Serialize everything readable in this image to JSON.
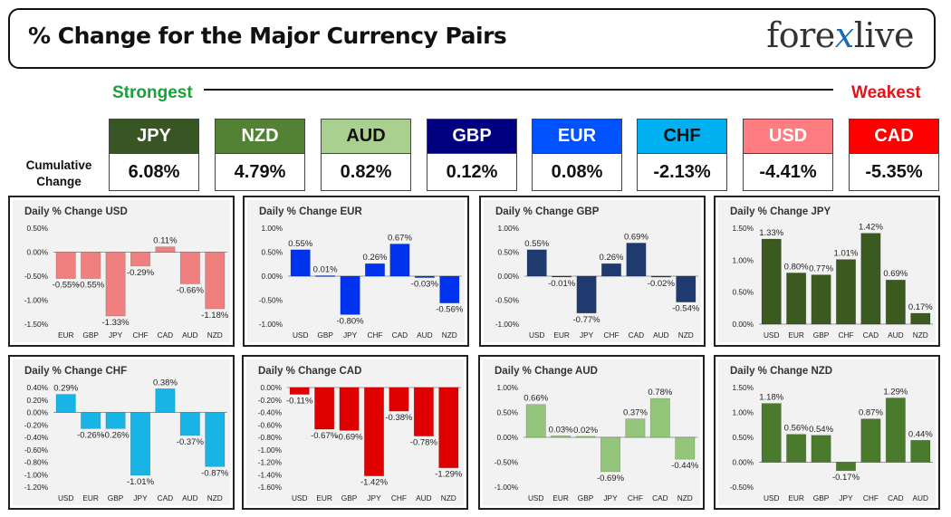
{
  "header": {
    "title": "% Change for the Major Currency Pairs",
    "logo_left": "fore",
    "logo_x": "x",
    "logo_right": "live"
  },
  "scale": {
    "strongest": "Strongest",
    "weakest": "Weakest"
  },
  "cumulative_label_1": "Cumulative",
  "cumulative_label_2": "Change",
  "currencies": [
    {
      "code": "JPY",
      "change": "6.08%",
      "bg": "#375623",
      "fg": "#ffffff"
    },
    {
      "code": "NZD",
      "change": "4.79%",
      "bg": "#548235",
      "fg": "#ffffff"
    },
    {
      "code": "AUD",
      "change": "0.82%",
      "bg": "#a9d08e",
      "fg": "#111111"
    },
    {
      "code": "GBP",
      "change": "0.12%",
      "bg": "#000080",
      "fg": "#ffffff"
    },
    {
      "code": "EUR",
      "change": "0.08%",
      "bg": "#0052ff",
      "fg": "#ffffff"
    },
    {
      "code": "CHF",
      "change": "-2.13%",
      "bg": "#00b0f0",
      "fg": "#111111"
    },
    {
      "code": "USD",
      "change": "-4.41%",
      "bg": "#ff7c80",
      "fg": "#ffffff"
    },
    {
      "code": "CAD",
      "change": "-5.35%",
      "bg": "#ff0000",
      "fg": "#ffffff"
    }
  ],
  "chart_data": [
    {
      "type": "bar",
      "title": "Daily % Change USD",
      "color": "#f08080",
      "categories": [
        "EUR",
        "GBP",
        "JPY",
        "CHF",
        "CAD",
        "AUD",
        "NZD"
      ],
      "values": [
        -0.55,
        -0.55,
        -1.33,
        -0.29,
        0.11,
        -0.66,
        -1.18
      ],
      "labels": [
        "-0.55%",
        "-0.55%",
        "-1.33%",
        "-0.29%",
        "0.11%",
        "-0.66%",
        "-1.18%"
      ],
      "ticks": [
        0.5,
        0,
        -0.5,
        -1,
        -1.5
      ],
      "tick_labels": [
        "0.50%",
        "0.00%",
        "-0.50%",
        "-1.00%",
        "-1.50%"
      ],
      "ylim": [
        -1.5,
        0.5
      ]
    },
    {
      "type": "bar",
      "title": "Daily % Change EUR",
      "color": "#0033ee",
      "categories": [
        "USD",
        "GBP",
        "JPY",
        "CHF",
        "CAD",
        "AUD",
        "NZD"
      ],
      "values": [
        0.55,
        0.01,
        -0.8,
        0.26,
        0.67,
        -0.03,
        -0.56
      ],
      "labels": [
        "0.55%",
        "0.01%",
        "-0.80%",
        "0.26%",
        "0.67%",
        "-0.03%",
        "-0.56%"
      ],
      "ticks": [
        1,
        0.5,
        0,
        -0.5,
        -1
      ],
      "tick_labels": [
        "1.00%",
        "0.50%",
        "0.00%",
        "-0.50%",
        "-1.00%"
      ],
      "ylim": [
        -1,
        1
      ]
    },
    {
      "type": "bar",
      "title": "Daily % Change GBP",
      "color": "#1f3a6e",
      "categories": [
        "USD",
        "EUR",
        "JPY",
        "CHF",
        "CAD",
        "AUD",
        "NZD"
      ],
      "values": [
        0.55,
        -0.01,
        -0.77,
        0.26,
        0.69,
        -0.02,
        -0.54
      ],
      "labels": [
        "0.55%",
        "-0.01%",
        "-0.77%",
        "0.26%",
        "0.69%",
        "-0.02%",
        "-0.54%"
      ],
      "ticks": [
        1,
        0.5,
        0,
        -0.5,
        -1
      ],
      "tick_labels": [
        "1.00%",
        "0.50%",
        "0.00%",
        "-0.50%",
        "-1.00%"
      ],
      "ylim": [
        -1,
        1
      ]
    },
    {
      "type": "bar",
      "title": "Daily % Change JPY",
      "color": "#3a5a20",
      "categories": [
        "USD",
        "EUR",
        "GBP",
        "CHF",
        "CAD",
        "AUD",
        "NZD"
      ],
      "values": [
        1.33,
        0.8,
        0.77,
        1.01,
        1.42,
        0.69,
        0.17
      ],
      "labels": [
        "1.33%",
        "0.80%",
        "0.77%",
        "1.01%",
        "1.42%",
        "0.69%",
        "0.17%"
      ],
      "ticks": [
        1.5,
        1,
        0.5,
        0
      ],
      "tick_labels": [
        "1.50%",
        "1.00%",
        "0.50%",
        "0.00%"
      ],
      "ylim": [
        0,
        1.5
      ]
    },
    {
      "type": "bar",
      "title": "Daily % Change CHF",
      "color": "#19b4e6",
      "categories": [
        "USD",
        "EUR",
        "GBP",
        "JPY",
        "CAD",
        "AUD",
        "NZD"
      ],
      "values": [
        0.29,
        -0.26,
        -0.26,
        -1.01,
        0.38,
        -0.37,
        -0.87
      ],
      "labels": [
        "0.29%",
        "-0.26%",
        "-0.26%",
        "-1.01%",
        "0.38%",
        "-0.37%",
        "-0.87%"
      ],
      "ticks": [
        0.4,
        0.2,
        0,
        -0.2,
        -0.4,
        -0.6,
        -0.8,
        -1,
        -1.2
      ],
      "tick_labels": [
        "0.40%",
        "0.20%",
        "0.00%",
        "-0.20%",
        "-0.40%",
        "-0.60%",
        "-0.80%",
        "-1.00%",
        "-1.20%"
      ],
      "ylim": [
        -1.2,
        0.4
      ]
    },
    {
      "type": "bar",
      "title": "Daily % Change CAD",
      "color": "#e00000",
      "categories": [
        "USD",
        "EUR",
        "GBP",
        "JPY",
        "CHF",
        "AUD",
        "NZD"
      ],
      "values": [
        -0.11,
        -0.67,
        -0.69,
        -1.42,
        -0.38,
        -0.78,
        -1.29
      ],
      "labels": [
        "-0.11%",
        "-0.67%",
        "-0.69%",
        "-1.42%",
        "-0.38%",
        "-0.78%",
        "-1.29%"
      ],
      "ticks": [
        0,
        -0.2,
        -0.4,
        -0.6,
        -0.8,
        -1,
        -1.2,
        -1.4,
        -1.6
      ],
      "tick_labels": [
        "0.00%",
        "-0.20%",
        "-0.40%",
        "-0.60%",
        "-0.80%",
        "-1.00%",
        "-1.20%",
        "-1.40%",
        "-1.60%"
      ],
      "ylim": [
        -1.6,
        0
      ]
    },
    {
      "type": "bar",
      "title": "Daily % Change AUD",
      "color": "#93c57a",
      "categories": [
        "USD",
        "EUR",
        "GBP",
        "JPY",
        "CHF",
        "CAD",
        "NZD"
      ],
      "values": [
        0.66,
        0.03,
        0.02,
        -0.69,
        0.37,
        0.78,
        -0.44
      ],
      "labels": [
        "0.66%",
        "0.03%",
        "0.02%",
        "-0.69%",
        "0.37%",
        "0.78%",
        "-0.44%"
      ],
      "ticks": [
        1,
        0.5,
        0,
        -0.5,
        -1
      ],
      "tick_labels": [
        "1.00%",
        "0.50%",
        "0.00%",
        "-0.50%",
        "-1.00%"
      ],
      "ylim": [
        -1,
        1
      ]
    },
    {
      "type": "bar",
      "title": "Daily % Change NZD",
      "color": "#4a7a2c",
      "categories": [
        "USD",
        "EUR",
        "GBP",
        "JPY",
        "CHF",
        "CAD",
        "AUD"
      ],
      "values": [
        1.18,
        0.56,
        0.54,
        -0.17,
        0.87,
        1.29,
        0.44
      ],
      "labels": [
        "1.18%",
        "0.56%",
        "0.54%",
        "-0.17%",
        "0.87%",
        "1.29%",
        "0.44%"
      ],
      "ticks": [
        1.5,
        1,
        0.5,
        0,
        -0.5
      ],
      "tick_labels": [
        "1.50%",
        "1.00%",
        "0.50%",
        "0.00%",
        "-0.50%"
      ],
      "ylim": [
        -0.5,
        1.5
      ]
    }
  ]
}
